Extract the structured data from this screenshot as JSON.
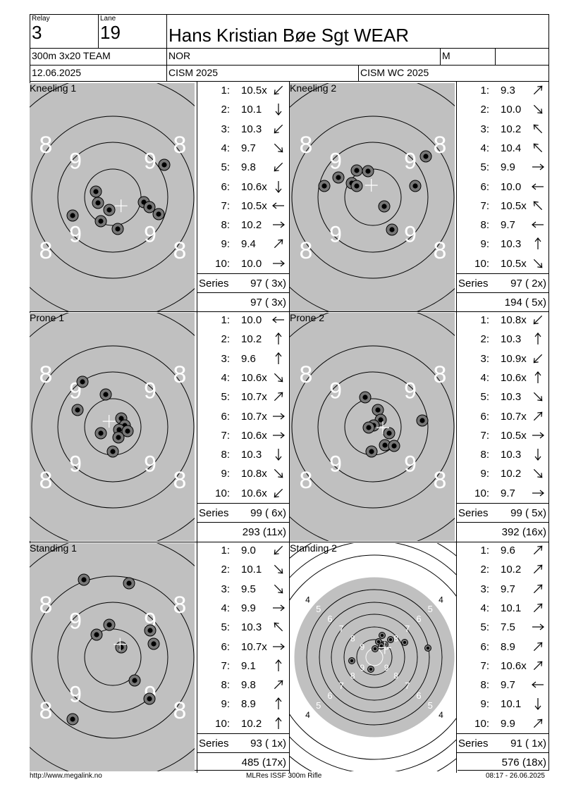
{
  "header": {
    "relay_label": "Relay",
    "relay": "3",
    "lane_label": "Lane",
    "lane": "19",
    "name": "Hans Kristian Bøe Sgt WEAR",
    "event": "300m 3x20 TEAM",
    "nation": "NOR",
    "gender": "M",
    "extra": "",
    "date": "12.06.2025",
    "competition": "CISM 2025",
    "match": "CISM WC 2025"
  },
  "panels": [
    {
      "title": "Kneeling 1",
      "target": "zoom",
      "shots": [
        {
          "n": "1:",
          "v": "10.5x",
          "dir": "sw"
        },
        {
          "n": "2:",
          "v": "10.1",
          "dir": "s"
        },
        {
          "n": "3:",
          "v": "10.3",
          "dir": "sw"
        },
        {
          "n": "4:",
          "v": "9.7",
          "dir": "se"
        },
        {
          "n": "5:",
          "v": "9.8",
          "dir": "sw"
        },
        {
          "n": "6:",
          "v": "10.6x",
          "dir": "s"
        },
        {
          "n": "7:",
          "v": "10.5x",
          "dir": "w"
        },
        {
          "n": "8:",
          "v": "10.2",
          "dir": "e"
        },
        {
          "n": "9:",
          "v": "9.4",
          "dir": "ne"
        },
        {
          "n": "10:",
          "v": "10.0",
          "dir": "e"
        }
      ],
      "series_label": "Series",
      "series": "97 ( 3x)",
      "cumulative": "97 ( 3x)",
      "holes": [
        [
          233,
          234
        ],
        [
          136,
          272
        ],
        [
          139,
          288
        ],
        [
          155,
          298
        ],
        [
          204,
          287
        ],
        [
          212,
          294
        ],
        [
          225,
          304
        ],
        [
          103,
          306
        ],
        [
          143,
          314
        ],
        [
          167,
          325
        ]
      ]
    },
    {
      "title": "Kneeling 2",
      "target": "zoom",
      "shots": [
        {
          "n": "1:",
          "v": "9.3",
          "dir": "ne"
        },
        {
          "n": "2:",
          "v": "10.0",
          "dir": "se"
        },
        {
          "n": "3:",
          "v": "10.2",
          "dir": "nw"
        },
        {
          "n": "4:",
          "v": "10.4",
          "dir": "nw"
        },
        {
          "n": "5:",
          "v": "9.9",
          "dir": "e"
        },
        {
          "n": "6:",
          "v": "10.0",
          "dir": "w"
        },
        {
          "n": "7:",
          "v": "10.5x",
          "dir": "nw"
        },
        {
          "n": "8:",
          "v": "9.7",
          "dir": "w"
        },
        {
          "n": "9:",
          "v": "10.3",
          "dir": "n"
        },
        {
          "n": "10:",
          "v": "10.5x",
          "dir": "se"
        }
      ],
      "series_label": "Series",
      "series": "97 ( 2x)",
      "cumulative": "194 ( 5x)",
      "holes": [
        [
          604,
          222
        ],
        [
          506,
          242
        ],
        [
          522,
          243
        ],
        [
          480,
          252
        ],
        [
          499,
          260
        ],
        [
          506,
          264
        ],
        [
          460,
          264
        ],
        [
          589,
          264
        ],
        [
          545,
          293
        ],
        [
          556,
          326
        ]
      ]
    },
    {
      "title": "Prone 1",
      "target": "zoom",
      "shots": [
        {
          "n": "1:",
          "v": "10.0",
          "dir": "w"
        },
        {
          "n": "2:",
          "v": "10.2",
          "dir": "n"
        },
        {
          "n": "3:",
          "v": "9.6",
          "dir": "n"
        },
        {
          "n": "4:",
          "v": "10.6x",
          "dir": "se"
        },
        {
          "n": "5:",
          "v": "10.7x",
          "dir": "ne"
        },
        {
          "n": "6:",
          "v": "10.7x",
          "dir": "e"
        },
        {
          "n": "7:",
          "v": "10.6x",
          "dir": "e"
        },
        {
          "n": "8:",
          "v": "10.3",
          "dir": "s"
        },
        {
          "n": "9:",
          "v": "10.8x",
          "dir": "se"
        },
        {
          "n": "10:",
          "v": "10.6x",
          "dir": "sw"
        }
      ],
      "series_label": "Series",
      "series": "99 ( 6x)",
      "cumulative": "293 (11x)",
      "holes": [
        [
          117,
          542
        ],
        [
          150,
          560
        ],
        [
          110,
          582
        ],
        [
          172,
          594
        ],
        [
          177,
          604
        ],
        [
          169,
          610
        ],
        [
          181,
          612
        ],
        [
          143,
          615
        ],
        [
          168,
          621
        ],
        [
          160,
          641
        ]
      ]
    },
    {
      "title": "Prone 2",
      "target": "zoom",
      "shots": [
        {
          "n": "1:",
          "v": "10.8x",
          "dir": "sw"
        },
        {
          "n": "2:",
          "v": "10.3",
          "dir": "n"
        },
        {
          "n": "3:",
          "v": "10.9x",
          "dir": "sw"
        },
        {
          "n": "4:",
          "v": "10.6x",
          "dir": "n"
        },
        {
          "n": "5:",
          "v": "10.3",
          "dir": "se"
        },
        {
          "n": "6:",
          "v": "10.7x",
          "dir": "ne"
        },
        {
          "n": "7:",
          "v": "10.5x",
          "dir": "e"
        },
        {
          "n": "8:",
          "v": "10.3",
          "dir": "s"
        },
        {
          "n": "9:",
          "v": "10.2",
          "dir": "se"
        },
        {
          "n": "10:",
          "v": "9.7",
          "dir": "e"
        }
      ],
      "series_label": "Series",
      "series": "99 ( 5x)",
      "cumulative": "392 (16x)",
      "holes": [
        [
          518,
          564
        ],
        [
          536,
          582
        ],
        [
          540,
          596
        ],
        [
          599,
          597
        ],
        [
          530,
          604
        ],
        [
          523,
          607
        ],
        [
          552,
          615
        ],
        [
          546,
          632
        ],
        [
          559,
          633
        ],
        [
          527,
          641
        ]
      ]
    },
    {
      "title": "Standing 1",
      "target": "zoom",
      "shots": [
        {
          "n": "1:",
          "v": "9.0",
          "dir": "sw"
        },
        {
          "n": "2:",
          "v": "10.1",
          "dir": "se"
        },
        {
          "n": "3:",
          "v": "9.5",
          "dir": "se"
        },
        {
          "n": "4:",
          "v": "9.9",
          "dir": "e"
        },
        {
          "n": "5:",
          "v": "10.3",
          "dir": "nw"
        },
        {
          "n": "6:",
          "v": "10.7x",
          "dir": "e"
        },
        {
          "n": "7:",
          "v": "9.1",
          "dir": "n"
        },
        {
          "n": "8:",
          "v": "9.8",
          "dir": "ne"
        },
        {
          "n": "9:",
          "v": "8.9",
          "dir": "n"
        },
        {
          "n": "10:",
          "v": "10.2",
          "dir": "n"
        }
      ],
      "series_label": "Series",
      "series": "93 ( 1x)",
      "cumulative": "485 (17x)",
      "holes": [
        [
          119,
          823
        ],
        [
          183,
          828
        ],
        [
          155,
          887
        ],
        [
          137,
          901
        ],
        [
          213,
          895
        ],
        [
          218,
          914
        ],
        [
          172,
          919
        ],
        [
          191,
          966
        ],
        [
          212,
          992
        ],
        [
          103,
          1021
        ]
      ]
    },
    {
      "title": "Standing 2",
      "target": "full",
      "shots": [
        {
          "n": "1:",
          "v": "9.6",
          "dir": "ne"
        },
        {
          "n": "2:",
          "v": "10.2",
          "dir": "ne"
        },
        {
          "n": "3:",
          "v": "9.7",
          "dir": "ne"
        },
        {
          "n": "4:",
          "v": "10.1",
          "dir": "ne"
        },
        {
          "n": "5:",
          "v": "7.5",
          "dir": "e"
        },
        {
          "n": "6:",
          "v": "8.9",
          "dir": "ne"
        },
        {
          "n": "7:",
          "v": "10.6x",
          "dir": "ne"
        },
        {
          "n": "8:",
          "v": "9.7",
          "dir": "w"
        },
        {
          "n": "9:",
          "v": "10.1",
          "dir": "s"
        },
        {
          "n": "10:",
          "v": "9.9",
          "dir": "ne"
        }
      ],
      "series_label": "Series",
      "series": "91 ( 1x)",
      "cumulative": "576 (18x)",
      "holes": [
        [
          542,
          902
        ],
        [
          554,
          908
        ],
        [
          574,
          912
        ],
        [
          537,
          911
        ],
        [
          546,
          915
        ],
        [
          541,
          917
        ],
        [
          532,
          921
        ],
        [
          607,
          920
        ],
        [
          499,
          938
        ],
        [
          526,
          950
        ]
      ]
    }
  ],
  "footer": {
    "left": "http://www.megalink.no",
    "center": "MLRes ISSF 300m Rifle",
    "right": "08:17 - 26.06.2025"
  }
}
